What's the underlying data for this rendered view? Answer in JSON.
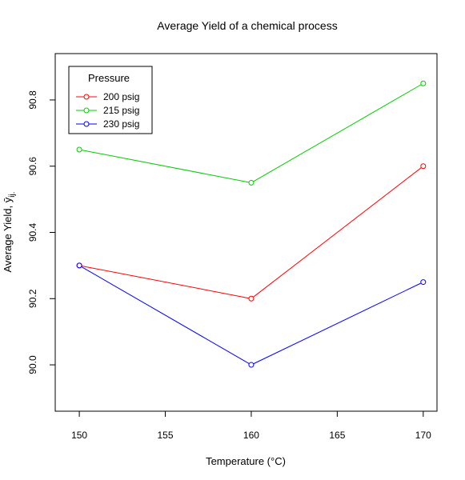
{
  "chart_data": {
    "type": "line",
    "title": "Average Yield of a chemical process",
    "xlabel": "Temperature (°C)",
    "ylabel": "Average Yield, ȳ",
    "ylabel_sub": "ij.",
    "x": [
      150,
      160,
      170
    ],
    "xlim": [
      148.6,
      170.8
    ],
    "ylim": [
      89.86,
      90.94
    ],
    "x_ticks": [
      150,
      155,
      160,
      165,
      170
    ],
    "x_tick_labels": [
      "150",
      "155",
      "160",
      "165",
      "170"
    ],
    "y_ticks": [
      90.0,
      90.2,
      90.4,
      90.6,
      90.8
    ],
    "y_tick_labels": [
      "90.0",
      "90.2",
      "90.4",
      "90.6",
      "90.8"
    ],
    "grid": false,
    "legend": {
      "title": "Pressure",
      "placement": "top-left"
    },
    "series": [
      {
        "name": "200 psig",
        "color": "#ff0000",
        "values": [
          90.3,
          90.2,
          90.6
        ]
      },
      {
        "name": "215 psig",
        "color": "#00cc00",
        "values": [
          90.65,
          90.55,
          90.85
        ]
      },
      {
        "name": "230 psig",
        "color": "#0000ff",
        "values": [
          90.3,
          90.0,
          90.25
        ]
      }
    ]
  }
}
